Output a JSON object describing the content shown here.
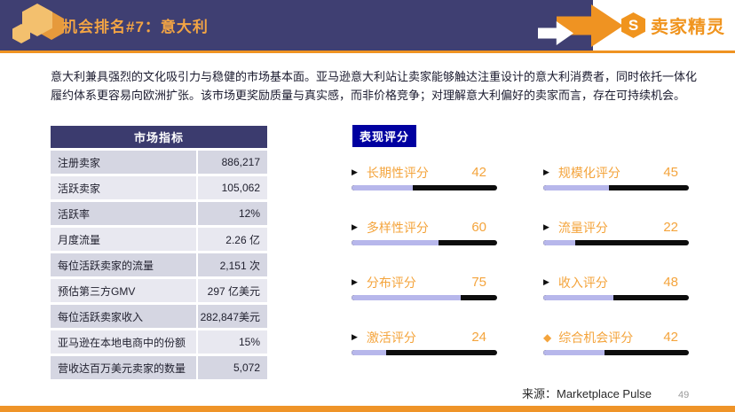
{
  "header": {
    "title": "机会排名#7：意大利",
    "logo_letter": "S",
    "logo_text": "卖家精灵"
  },
  "intro": "意大利兼具强烈的文化吸引力与稳健的市场基本面。亚马逊意大利站让卖家能够触达注重设计的意大利消费者，同时依托一体化履约体系更容易向欧洲扩张。该市场更奖励质量与真实感，而非价格竞争；对理解意大利偏好的卖家而言，存在可持续机会。",
  "metrics_table": {
    "title": "市场指标",
    "rows": [
      {
        "label": "注册卖家",
        "value": "886,217"
      },
      {
        "label": "活跃卖家",
        "value": "105,062"
      },
      {
        "label": "活跃率",
        "value": "12%"
      },
      {
        "label": "月度流量",
        "value": "2.26 亿"
      },
      {
        "label": "每位活跃卖家的流量",
        "value": "2,151 次"
      },
      {
        "label": "预估第三方GMV",
        "value": "297 亿美元"
      },
      {
        "label": "每位活跃卖家收入",
        "value": "282,847美元"
      },
      {
        "label": "亚马逊在本地电商中的份额",
        "value": "15%"
      },
      {
        "label": "营收达百万美元卖家的数量",
        "value": "5,072"
      }
    ]
  },
  "scores": {
    "badge": "表现评分",
    "items": [
      {
        "label": "长期性评分",
        "value": 42,
        "bullet": "triangle"
      },
      {
        "label": "规模化评分",
        "value": 45,
        "bullet": "triangle"
      },
      {
        "label": "多样性评分",
        "value": 60,
        "bullet": "triangle"
      },
      {
        "label": "流量评分",
        "value": 22,
        "bullet": "triangle"
      },
      {
        "label": "分布评分",
        "value": 75,
        "bullet": "triangle"
      },
      {
        "label": "收入评分",
        "value": 48,
        "bullet": "triangle"
      },
      {
        "label": "激活评分",
        "value": 24,
        "bullet": "triangle"
      },
      {
        "label": "综合机会评分",
        "value": 42,
        "bullet": "diamond"
      }
    ]
  },
  "chart_data": {
    "type": "bar",
    "categories": [
      "长期性评分",
      "规模化评分",
      "多样性评分",
      "流量评分",
      "分布评分",
      "收入评分",
      "激活评分",
      "综合机会评分"
    ],
    "values": [
      42,
      45,
      60,
      22,
      75,
      48,
      24,
      42
    ],
    "title": "表现评分",
    "xlabel": "",
    "ylabel": "",
    "ylim": [
      0,
      100
    ]
  },
  "footer": {
    "source": "来源：Marketplace Pulse",
    "page": "49"
  },
  "colors": {
    "header_navy": "#3f3f72",
    "accent_orange": "#ef9322",
    "title_orange": "#f2a444",
    "badge_blue": "#0000a0",
    "bar_fill_lavender": "#b7b7eb",
    "bar_track_black": "#0d0d0d",
    "row_dark": "#d5d6e2",
    "row_light": "#e8e8f0"
  }
}
